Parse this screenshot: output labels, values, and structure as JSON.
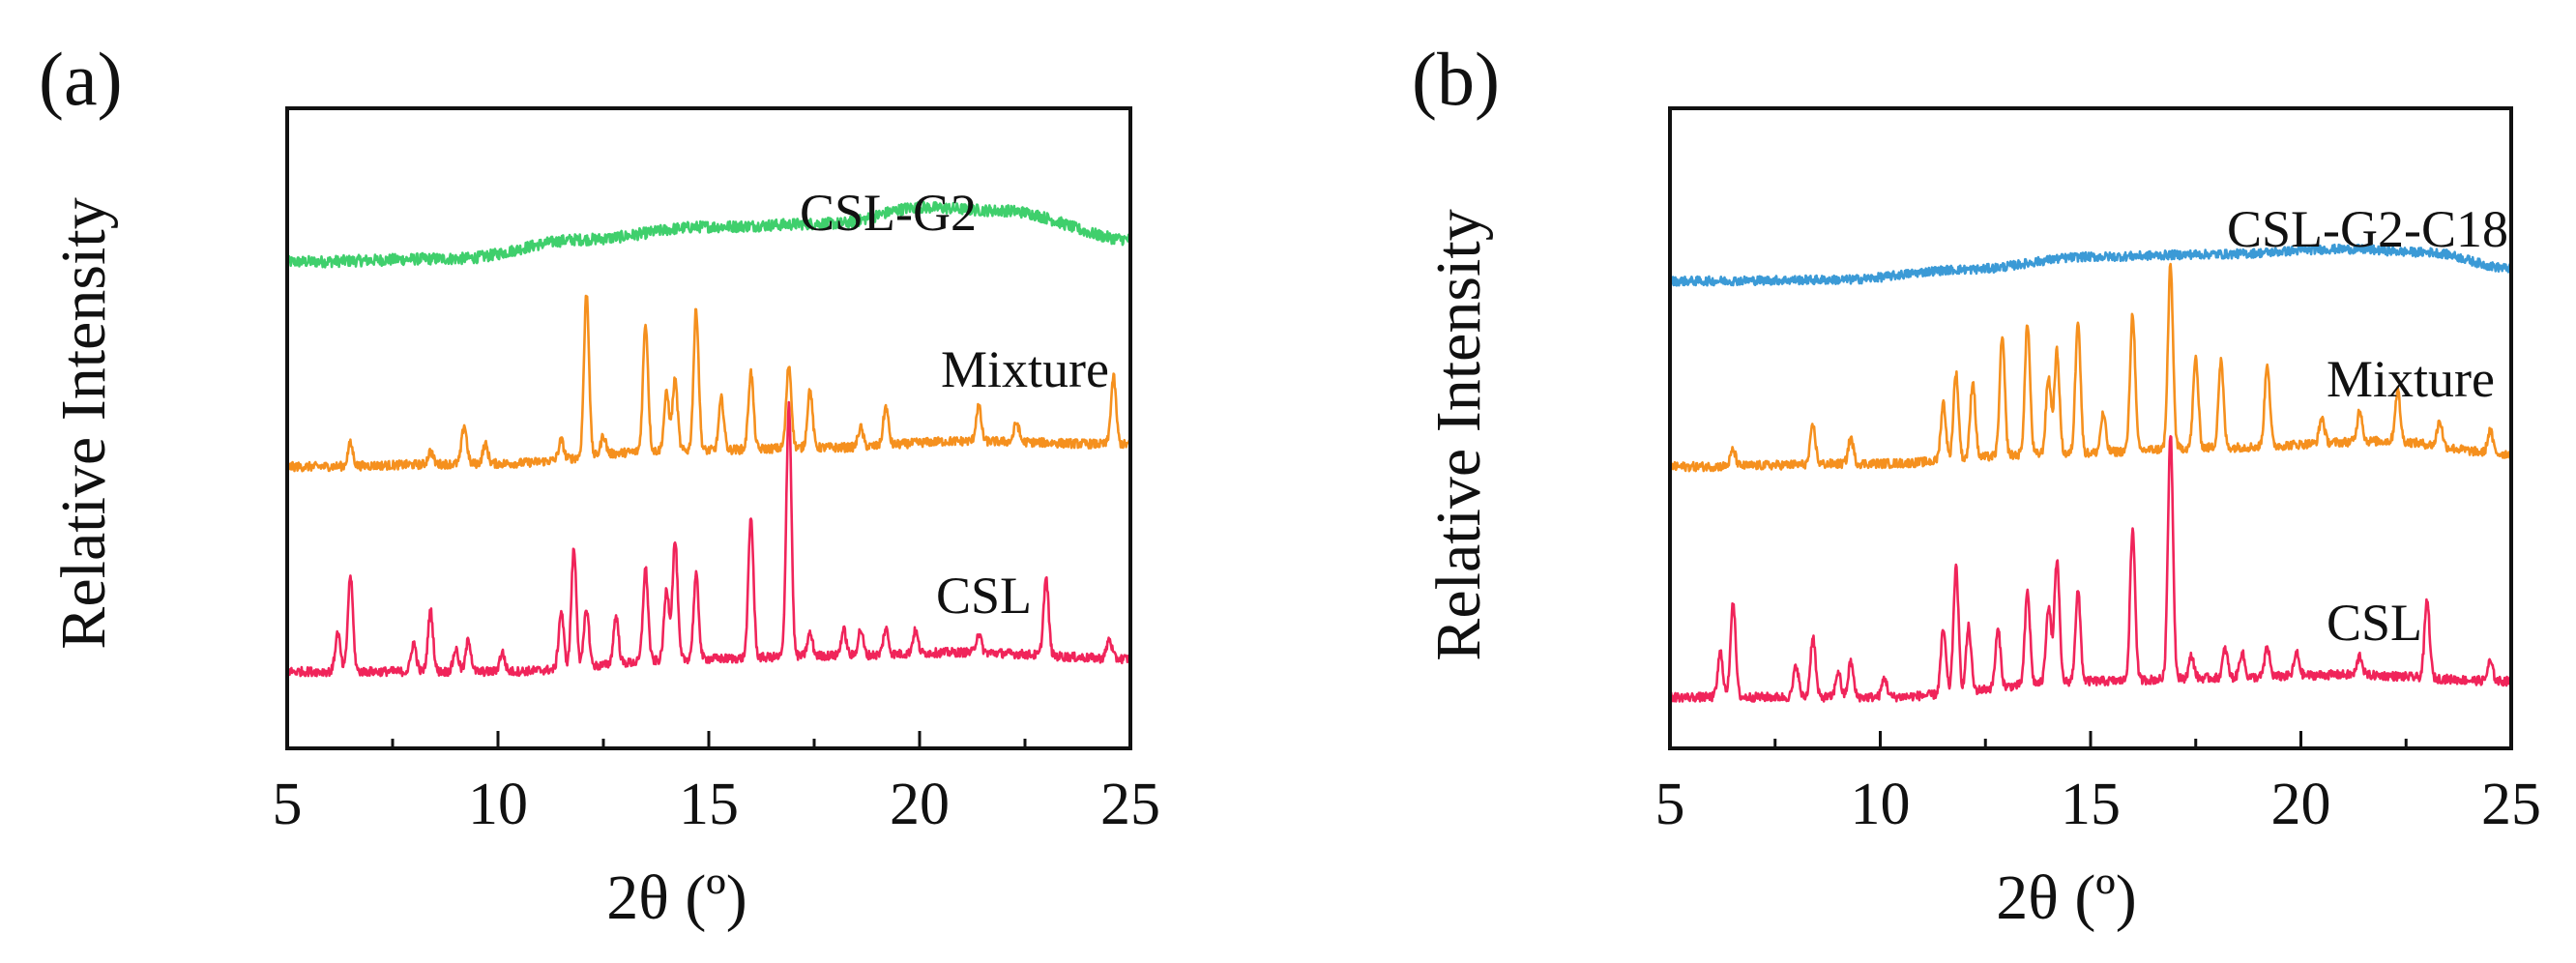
{
  "chart_data": [
    {
      "type": "line",
      "panel_label": "(a)",
      "xlabel": "2θ (º)",
      "ylabel": "Relative Intensity",
      "xlim": [
        5,
        25
      ],
      "xticks": [
        5,
        10,
        15,
        20,
        25
      ],
      "ylim": [
        0,
        10
      ],
      "yticks_shown": false,
      "grid": false,
      "series": [
        {
          "name": "CSL-G2",
          "label": "CSL-G2",
          "color": "#3fcf6c",
          "baseline": 7.6,
          "noise": 0.09,
          "peaks": [],
          "hump": [
            [
              5,
              0
            ],
            [
              9,
              0.05
            ],
            [
              12,
              0.35
            ],
            [
              15,
              0.55
            ],
            [
              18,
              0.6
            ],
            [
              20,
              0.85
            ],
            [
              22,
              0.8
            ],
            [
              25,
              0.35
            ]
          ]
        },
        {
          "name": "Mixture",
          "label": "Mixture",
          "color": "#f5901e",
          "baseline": 4.4,
          "noise": 0.07,
          "peaks": [
            [
              6.5,
              0.35
            ],
            [
              8.4,
              0.2
            ],
            [
              9.2,
              0.6
            ],
            [
              9.7,
              0.3
            ],
            [
              11.5,
              0.3
            ],
            [
              12.1,
              2.55
            ],
            [
              12.5,
              0.3
            ],
            [
              13.5,
              2.0
            ],
            [
              14.0,
              0.9
            ],
            [
              14.2,
              1.1
            ],
            [
              14.7,
              2.2
            ],
            [
              15.3,
              0.8
            ],
            [
              16.0,
              1.2
            ],
            [
              16.9,
              1.3
            ],
            [
              17.4,
              0.9
            ],
            [
              18.6,
              0.3
            ],
            [
              19.2,
              0.6
            ],
            [
              21.4,
              0.55
            ],
            [
              22.3,
              0.3
            ],
            [
              24.6,
              1.05
            ]
          ],
          "hump": [
            [
              5,
              0
            ],
            [
              10,
              0.05
            ],
            [
              14,
              0.25
            ],
            [
              18,
              0.3
            ],
            [
              21,
              0.4
            ],
            [
              25,
              0.35
            ]
          ]
        },
        {
          "name": "CSL",
          "label": "CSL",
          "color": "#f0245a",
          "baseline": 1.2,
          "noise": 0.07,
          "peaks": [
            [
              6.2,
              0.6
            ],
            [
              6.5,
              1.5
            ],
            [
              8.0,
              0.45
            ],
            [
              8.4,
              0.95
            ],
            [
              9.0,
              0.35
            ],
            [
              9.3,
              0.5
            ],
            [
              10.1,
              0.3
            ],
            [
              11.5,
              0.9
            ],
            [
              11.8,
              1.85
            ],
            [
              12.1,
              0.9
            ],
            [
              12.8,
              0.75
            ],
            [
              13.5,
              1.45
            ],
            [
              14.0,
              1.1
            ],
            [
              14.2,
              1.85
            ],
            [
              14.7,
              1.3
            ],
            [
              16.0,
              2.2
            ],
            [
              16.9,
              3.95
            ],
            [
              17.4,
              0.35
            ],
            [
              18.2,
              0.4
            ],
            [
              18.6,
              0.4
            ],
            [
              19.2,
              0.4
            ],
            [
              19.9,
              0.35
            ],
            [
              21.4,
              0.3
            ],
            [
              23.0,
              1.2
            ],
            [
              24.5,
              0.3
            ]
          ],
          "hump": [
            [
              5,
              0
            ],
            [
              10,
              0.0
            ],
            [
              15,
              0.2
            ],
            [
              18,
              0.25
            ],
            [
              21,
              0.3
            ],
            [
              25,
              0.2
            ]
          ]
        }
      ]
    },
    {
      "type": "line",
      "panel_label": "(b)",
      "xlabel": "2θ (º)",
      "ylabel": "Relative Intensity",
      "xlim": [
        5,
        25
      ],
      "xticks": [
        5,
        10,
        15,
        20,
        25
      ],
      "ylim": [
        0,
        10
      ],
      "yticks_shown": false,
      "grid": false,
      "series": [
        {
          "name": "CSL-G2-C18",
          "label": "CSL-G2-C18",
          "color": "#3b9ad6",
          "baseline": 7.3,
          "noise": 0.07,
          "peaks": [],
          "hump": [
            [
              5,
              0
            ],
            [
              9,
              0.02
            ],
            [
              12,
              0.18
            ],
            [
              15,
              0.38
            ],
            [
              18,
              0.42
            ],
            [
              21,
              0.5
            ],
            [
              23,
              0.45
            ],
            [
              25,
              0.2
            ]
          ]
        },
        {
          "name": "Mixture",
          "label": "Mixture",
          "color": "#f5901e",
          "baseline": 4.4,
          "noise": 0.07,
          "peaks": [
            [
              6.5,
              0.25
            ],
            [
              8.4,
              0.6
            ],
            [
              9.3,
              0.4
            ],
            [
              11.5,
              0.9
            ],
            [
              11.8,
              1.35
            ],
            [
              12.2,
              1.2
            ],
            [
              12.9,
              1.85
            ],
            [
              13.5,
              2.05
            ],
            [
              14.0,
              1.2
            ],
            [
              14.2,
              1.6
            ],
            [
              14.7,
              2.1
            ],
            [
              15.3,
              0.6
            ],
            [
              16.0,
              2.15
            ],
            [
              16.9,
              2.85
            ],
            [
              17.5,
              1.4
            ],
            [
              18.1,
              1.35
            ],
            [
              19.2,
              1.3
            ],
            [
              20.5,
              0.4
            ],
            [
              21.4,
              0.5
            ],
            [
              22.3,
              0.8
            ],
            [
              23.3,
              0.4
            ],
            [
              24.5,
              0.35
            ]
          ],
          "hump": [
            [
              5,
              0
            ],
            [
              10,
              0.05
            ],
            [
              14,
              0.2
            ],
            [
              18,
              0.3
            ],
            [
              22,
              0.4
            ],
            [
              25,
              0.2
            ]
          ]
        },
        {
          "name": "CSL",
          "label": "CSL",
          "color": "#f0245a",
          "baseline": 0.8,
          "noise": 0.07,
          "peaks": [
            [
              6.2,
              0.7
            ],
            [
              6.5,
              1.5
            ],
            [
              8.0,
              0.5
            ],
            [
              8.4,
              0.95
            ],
            [
              9.0,
              0.4
            ],
            [
              9.3,
              0.55
            ],
            [
              10.1,
              0.3
            ],
            [
              11.5,
              1.0
            ],
            [
              11.8,
              1.95
            ],
            [
              12.1,
              1.0
            ],
            [
              12.8,
              0.9
            ],
            [
              13.5,
              1.45
            ],
            [
              14.0,
              1.2
            ],
            [
              14.2,
              1.9
            ],
            [
              14.7,
              1.4
            ],
            [
              16.0,
              2.35
            ],
            [
              16.9,
              3.85
            ],
            [
              17.4,
              0.35
            ],
            [
              18.2,
              0.45
            ],
            [
              18.6,
              0.4
            ],
            [
              19.2,
              0.45
            ],
            [
              19.9,
              0.35
            ],
            [
              21.4,
              0.3
            ],
            [
              23.0,
              1.2
            ],
            [
              24.5,
              0.3
            ]
          ],
          "hump": [
            [
              5,
              0
            ],
            [
              10,
              0.0
            ],
            [
              15,
              0.25
            ],
            [
              18,
              0.3
            ],
            [
              21,
              0.35
            ],
            [
              25,
              0.25
            ]
          ]
        }
      ]
    }
  ]
}
